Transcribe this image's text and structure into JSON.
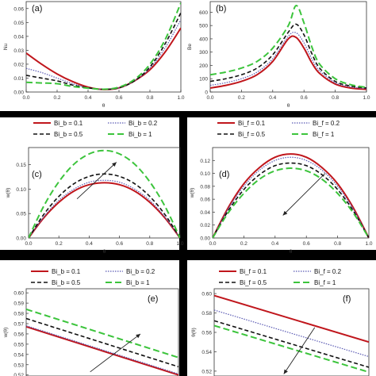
{
  "colors": {
    "s1": "#c0161c",
    "s2": "#5a5ab4",
    "s3": "#111111",
    "s4": "#3cc43c",
    "axis": "#333333",
    "separator": "#000000"
  },
  "chart_data": [
    {
      "type": "line",
      "panel": "(a)",
      "xlabel": "θ",
      "ylabel": "Nu",
      "xlim": [
        0,
        1
      ],
      "ylim": [
        0,
        0.065
      ],
      "xticks": [
        "0.0",
        "0.2",
        "0.4",
        "0.6",
        "0.8",
        "1.0"
      ],
      "yticks": [
        "0.00",
        "0.01",
        "0.02",
        "0.03",
        "0.04",
        "0.05",
        "0.06"
      ],
      "x": [
        0,
        0.1,
        0.2,
        0.3,
        0.4,
        0.5,
        0.6,
        0.7,
        0.8,
        0.9,
        1.0
      ],
      "series": [
        {
          "values": [
            0.028,
            0.02,
            0.013,
            0.0075,
            0.0035,
            0.0018,
            0.003,
            0.008,
            0.016,
            0.029,
            0.046
          ]
        },
        {
          "values": [
            0.017,
            0.014,
            0.01,
            0.006,
            0.003,
            0.0018,
            0.003,
            0.008,
            0.017,
            0.032,
            0.052
          ]
        },
        {
          "values": [
            0.012,
            0.01,
            0.008,
            0.005,
            0.003,
            0.002,
            0.003,
            0.008,
            0.018,
            0.035,
            0.057
          ]
        },
        {
          "values": [
            0.007,
            0.0065,
            0.006,
            0.004,
            0.0028,
            0.002,
            0.0035,
            0.009,
            0.02,
            0.038,
            0.064
          ]
        }
      ]
    },
    {
      "type": "line",
      "panel": "(b)",
      "xlabel": "θ",
      "ylabel": "Be",
      "xlim": [
        0,
        1
      ],
      "ylim": [
        0,
        680
      ],
      "xticks": [
        "0.0",
        "0.2",
        "0.4",
        "0.6",
        "0.8",
        "1.0"
      ],
      "yticks": [
        "0",
        "100",
        "200",
        "300",
        "400",
        "500",
        "600"
      ],
      "x": [
        0,
        0.1,
        0.2,
        0.3,
        0.4,
        0.5,
        0.55,
        0.6,
        0.65,
        0.7,
        0.8,
        0.9,
        1.0
      ],
      "series": [
        {
          "values": [
            30,
            50,
            80,
            130,
            230,
            400,
            410,
            330,
            220,
            140,
            60,
            30,
            20
          ]
        },
        {
          "values": [
            50,
            70,
            100,
            150,
            250,
            420,
            445,
            370,
            250,
            160,
            70,
            38,
            25
          ]
        },
        {
          "values": [
            80,
            100,
            130,
            180,
            280,
            450,
            510,
            430,
            290,
            180,
            80,
            45,
            30
          ]
        },
        {
          "values": [
            130,
            150,
            180,
            230,
            330,
            500,
            650,
            520,
            340,
            210,
            100,
            55,
            35
          ]
        }
      ]
    },
    {
      "type": "line",
      "panel": "(c)",
      "xlabel": "θ",
      "ylabel": "w(θ)",
      "legend": [
        "Bi_b = 0.1",
        "Bi_b = 0.2",
        "Bi_b = 0.5",
        "Bi_b = 1"
      ],
      "legend_sub": "b",
      "xlim": [
        0,
        1
      ],
      "ylim": [
        0,
        0.185
      ],
      "xticks": [
        "0.0",
        "0.2",
        "0.4",
        "0.6",
        "0.8",
        "1.0"
      ],
      "yticks": [
        "0.00",
        "0.05",
        "0.10",
        "0.15"
      ],
      "x": [
        0,
        0.1,
        0.2,
        0.3,
        0.4,
        0.5,
        0.6,
        0.7,
        0.8,
        0.9,
        1.0
      ],
      "series": [
        {
          "values": [
            0,
            0.041,
            0.073,
            0.096,
            0.109,
            0.113,
            0.109,
            0.096,
            0.073,
            0.041,
            0
          ]
        },
        {
          "values": [
            0,
            0.043,
            0.077,
            0.1,
            0.114,
            0.118,
            0.114,
            0.1,
            0.077,
            0.043,
            0
          ]
        },
        {
          "values": [
            0,
            0.048,
            0.085,
            0.111,
            0.126,
            0.131,
            0.126,
            0.111,
            0.085,
            0.048,
            0
          ]
        },
        {
          "values": [
            0,
            0.065,
            0.115,
            0.151,
            0.172,
            0.179,
            0.172,
            0.151,
            0.115,
            0.065,
            0
          ]
        }
      ]
    },
    {
      "type": "line",
      "panel": "(d)",
      "xlabel": "θ",
      "ylabel": "w(θ)",
      "legend": [
        "Bi_f = 0.1",
        "Bi_f = 0.2",
        "Bi_f = 0.5",
        "Bi_f = 1"
      ],
      "legend_sub": "f",
      "xlim": [
        0,
        1
      ],
      "ylim": [
        0,
        0.14
      ],
      "xticks": [
        "0.0",
        "0.2",
        "0.4",
        "0.6",
        "0.8",
        "1.0"
      ],
      "yticks": [
        "0.00",
        "0.02",
        "0.04",
        "0.06",
        "0.08",
        "0.10",
        "0.12"
      ],
      "x": [
        0,
        0.1,
        0.2,
        0.3,
        0.4,
        0.5,
        0.6,
        0.7,
        0.8,
        0.9,
        1.0
      ],
      "series": [
        {
          "values": [
            0,
            0.047,
            0.084,
            0.109,
            0.125,
            0.13,
            0.125,
            0.109,
            0.084,
            0.047,
            0
          ]
        },
        {
          "values": [
            0,
            0.045,
            0.08,
            0.105,
            0.12,
            0.125,
            0.12,
            0.105,
            0.08,
            0.045,
            0
          ]
        },
        {
          "values": [
            0,
            0.042,
            0.075,
            0.098,
            0.112,
            0.116,
            0.112,
            0.098,
            0.075,
            0.042,
            0
          ]
        },
        {
          "values": [
            0,
            0.039,
            0.069,
            0.091,
            0.104,
            0.108,
            0.104,
            0.091,
            0.069,
            0.039,
            0
          ]
        }
      ]
    },
    {
      "type": "line",
      "panel": "(e)",
      "ylabel": "w(θ)",
      "legend": [
        "Bi_b = 0.1",
        "Bi_b = 0.2",
        "Bi_b = 0.5",
        "Bi_b = 1"
      ],
      "legend_sub": "b",
      "xlim": [
        0,
        1
      ],
      "ylim": [
        0.519,
        0.604
      ],
      "yticks": [
        "0.52",
        "0.53",
        "0.54",
        "0.55",
        "0.56",
        "0.57",
        "0.58",
        "0.59",
        "0.60"
      ],
      "x": [
        0,
        1
      ],
      "series": [
        {
          "values": [
            0.567,
            0.52
          ]
        },
        {
          "values": [
            0.568,
            0.521
          ]
        },
        {
          "values": [
            0.575,
            0.528
          ]
        },
        {
          "values": [
            0.584,
            0.537
          ]
        }
      ]
    },
    {
      "type": "line",
      "panel": "(f)",
      "ylabel": "θ(θ)",
      "legend": [
        "Bi_f = 0.1",
        "Bi_f = 0.2",
        "Bi_f = 0.5",
        "Bi_f = 1"
      ],
      "legend_sub": "f",
      "xlim": [
        0,
        1
      ],
      "ylim": [
        0.515,
        0.605
      ],
      "yticks": [
        "0.52",
        "0.54",
        "0.56",
        "0.58",
        "0.60"
      ],
      "x": [
        0,
        1
      ],
      "series": [
        {
          "values": [
            0.598,
            0.55
          ]
        },
        {
          "values": [
            0.583,
            0.535
          ]
        },
        {
          "values": [
            0.572,
            0.524
          ]
        },
        {
          "values": [
            0.567,
            0.519
          ]
        }
      ]
    }
  ]
}
